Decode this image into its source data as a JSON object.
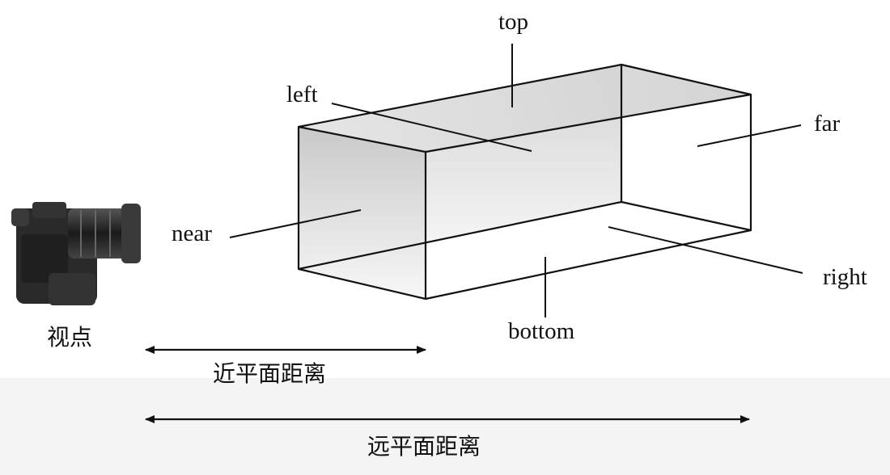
{
  "labels": {
    "top": "top",
    "left": "left",
    "far": "far",
    "near": "near",
    "right": "right",
    "bottom": "bottom",
    "viewpoint": "视点",
    "near_distance": "近平面距离",
    "far_distance": "远平面距离"
  },
  "icons": {
    "camera": "camera-icon"
  },
  "colors": {
    "line": "#111111",
    "face_shade": "#d8d8d8",
    "background_band": "#f4f4f4"
  }
}
